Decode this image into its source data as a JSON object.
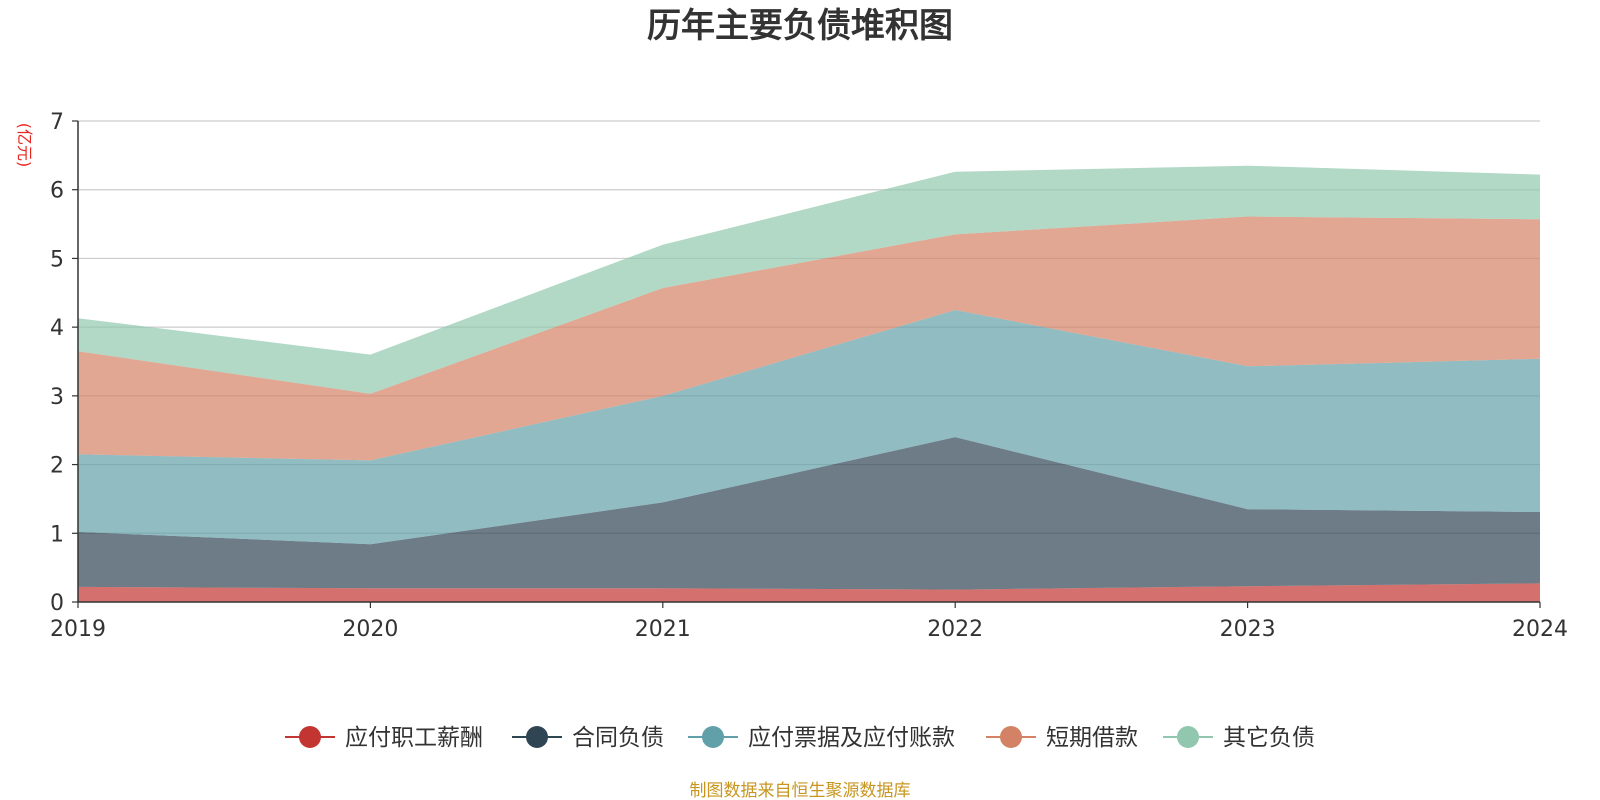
{
  "chart_data": {
    "type": "area",
    "stacked": true,
    "title": "历年主要负债堆积图",
    "y_unit": "(亿元)",
    "x": [
      "2019",
      "2020",
      "2021",
      "2022",
      "2023",
      "2024"
    ],
    "yticks": [
      "0",
      "1",
      "2",
      "3",
      "4",
      "5",
      "6",
      "7"
    ],
    "ylim": [
      0,
      7
    ],
    "grid": true,
    "legend_position": "bottom",
    "series": [
      {
        "name": "应付职工薪酬",
        "color": "#c23531",
        "values": [
          0.22,
          0.2,
          0.2,
          0.18,
          0.23,
          0.27
        ]
      },
      {
        "name": "合同负债",
        "color": "#2f4554",
        "values": [
          0.8,
          0.64,
          1.25,
          2.22,
          1.12,
          1.04
        ]
      },
      {
        "name": "应付票据及应付账款",
        "color": "#61a0a8",
        "values": [
          1.13,
          1.22,
          1.55,
          1.85,
          2.08,
          2.23
        ]
      },
      {
        "name": "短期借款",
        "color": "#d48265",
        "values": [
          1.5,
          0.97,
          1.57,
          1.1,
          2.18,
          2.03
        ]
      },
      {
        "name": "其它负债",
        "color": "#91c7ae",
        "values": [
          0.48,
          0.57,
          0.63,
          0.91,
          0.74,
          0.65
        ]
      }
    ],
    "source": "制图数据来自恒生聚源数据库"
  }
}
